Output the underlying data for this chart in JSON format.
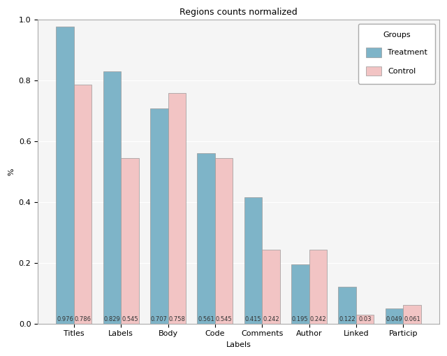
{
  "title": "Regions counts normalized",
  "xlabel": "Labels",
  "ylabel": "%",
  "categories": [
    "Titles",
    "Labels",
    "Body",
    "Code",
    "Comments",
    "Author",
    "Linked",
    "Particip"
  ],
  "treatment": [
    0.976,
    0.829,
    0.707,
    0.561,
    0.415,
    0.195,
    0.122,
    0.049
  ],
  "control": [
    0.786,
    0.545,
    0.758,
    0.545,
    0.242,
    0.242,
    0.03,
    0.061
  ],
  "treatment_color": "#7EB4C8",
  "control_color": "#F2C4C4",
  "ylim": [
    0.0,
    1.05
  ],
  "bar_width": 0.38,
  "legend_title": "Groups",
  "legend_labels": [
    "Treatment",
    "Control"
  ],
  "value_fontsize": 6.0,
  "title_fontsize": 9,
  "axis_label_fontsize": 8,
  "tick_fontsize": 8,
  "bg_color": "#f5f5f5"
}
